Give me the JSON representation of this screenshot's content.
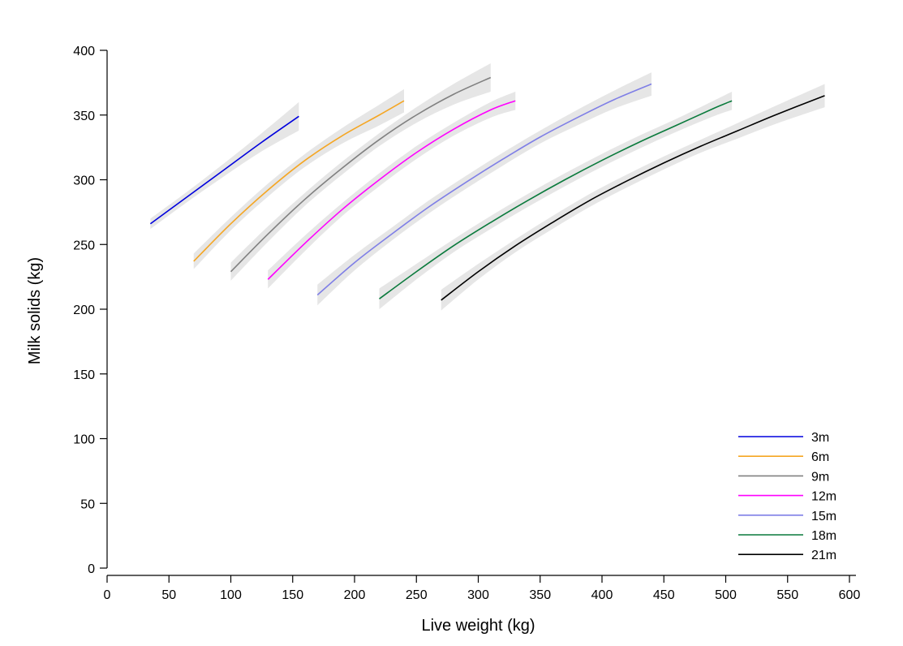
{
  "chart_data": {
    "type": "line",
    "title": "",
    "xlabel": "Live weight (kg)",
    "ylabel": "Milk solids (kg)",
    "xlim": [
      0,
      600
    ],
    "ylim": [
      0,
      400
    ],
    "xticks": [
      0,
      50,
      100,
      150,
      200,
      250,
      300,
      350,
      400,
      450,
      500,
      550,
      600
    ],
    "yticks": [
      0,
      50,
      100,
      150,
      200,
      250,
      300,
      350,
      400
    ],
    "grid": false,
    "confidence_band_color": "#e6e6e6",
    "legend": {
      "position": "bottom-right"
    },
    "series": [
      {
        "name": "3m",
        "color": "#0000dd",
        "x": [
          35,
          65,
          95,
          125,
          155
        ],
        "y": [
          266,
          287,
          308,
          329,
          349
        ],
        "band": [
          4,
          4,
          5,
          7,
          11
        ]
      },
      {
        "name": "6m",
        "color": "#f5a623",
        "x": [
          70,
          100,
          130,
          160,
          190,
          220,
          240
        ],
        "y": [
          237,
          266,
          292,
          315,
          334,
          350,
          361
        ],
        "band": [
          6,
          5,
          5,
          5,
          6,
          8,
          9
        ]
      },
      {
        "name": "9m",
        "color": "#808080",
        "x": [
          100,
          130,
          160,
          190,
          220,
          250,
          280,
          310
        ],
        "y": [
          229,
          258,
          285,
          309,
          331,
          350,
          366,
          379
        ],
        "band": [
          7,
          6,
          5,
          5,
          5,
          6,
          8,
          11
        ]
      },
      {
        "name": "12m",
        "color": "#ff00ff",
        "x": [
          130,
          160,
          190,
          220,
          250,
          280,
          310,
          330
        ],
        "y": [
          223,
          251,
          277,
          300,
          321,
          339,
          354,
          361
        ],
        "band": [
          7,
          6,
          5,
          5,
          5,
          5,
          6,
          7
        ]
      },
      {
        "name": "15m",
        "color": "#7f7fe6",
        "x": [
          170,
          200,
          230,
          260,
          290,
          320,
          350,
          380,
          410,
          440
        ],
        "y": [
          211,
          236,
          258,
          279,
          298,
          316,
          333,
          348,
          362,
          374
        ],
        "band": [
          8,
          6,
          5,
          5,
          5,
          5,
          5,
          6,
          7,
          9
        ]
      },
      {
        "name": "18m",
        "color": "#0a7a3c",
        "x": [
          220,
          250,
          280,
          310,
          340,
          370,
          400,
          430,
          460,
          490,
          505
        ],
        "y": [
          208,
          229,
          249,
          267,
          284,
          300,
          315,
          329,
          342,
          355,
          361
        ],
        "band": [
          8,
          6,
          5,
          5,
          5,
          5,
          5,
          5,
          5,
          6,
          7
        ]
      },
      {
        "name": "21m",
        "color": "#000000",
        "x": [
          270,
          300,
          330,
          360,
          390,
          420,
          450,
          480,
          510,
          540,
          580
        ],
        "y": [
          207,
          229,
          249,
          267,
          284,
          299,
          313,
          326,
          338,
          350,
          365
        ],
        "band": [
          8,
          6,
          5,
          5,
          5,
          5,
          5,
          5,
          6,
          7,
          9
        ]
      }
    ]
  }
}
